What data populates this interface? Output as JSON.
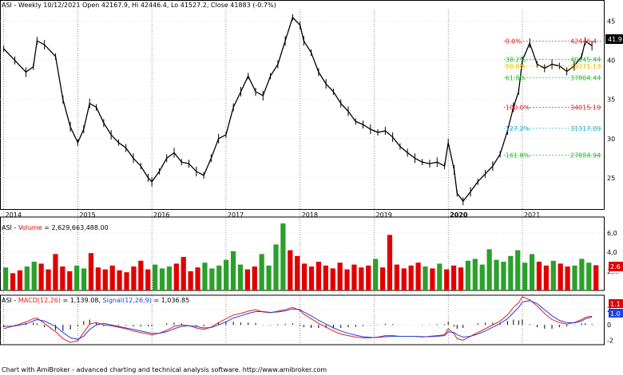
{
  "colors": {
    "background": "#ffffff",
    "price": "#000000",
    "vol_up": "#2ca02c",
    "vol_down": "#e00000",
    "macd": "#e02020",
    "signal": "#2040e0",
    "hist": "#000000",
    "grid": "#c8c8c8",
    "year_divider": "#000000",
    "fib_red": "#e02020",
    "fib_green": "#20c020",
    "fib_cyan": "#20b0c0",
    "fib_yellow": "#e0c000"
  },
  "header": {
    "price_title": "ASI - Weekly 10/12/2021 Open 42167.9, Hi 42446.4, Lo 41527.2, Close 41883 (-0.7%)",
    "volume_title_prefix": "ASI - ",
    "volume_title_name": "Volume",
    "volume_title_value": " = 2,629,663,488.00",
    "macd_title_prefix": "ASI - ",
    "macd_title_macd": "MACD(12,26)",
    "macd_title_macd_val": " = 1,139.08, ",
    "macd_title_signal": "Signal(12,26,9)",
    "macd_title_signal_val": " = 1,036.85"
  },
  "footer": "Chart with AmiBroker - advanced charting and technical analysis software. http://www.amibroker.com",
  "price_badge": "41.9",
  "volume_badge": "2.6",
  "macd_badge_1": "1.1",
  "macd_badge_2": "1.0",
  "fib_labels": [
    {
      "pct": "0.0%",
      "value": "42446.4",
      "color": "fib_red"
    },
    {
      "pct": "38.2%",
      "value": "40145.44",
      "color": "fib_green"
    },
    {
      "pct": "50.0%",
      "value": "39271.13",
      "color": "fib_yellow"
    },
    {
      "pct": "61.8%",
      "value": "37804.44",
      "color": "fib_green"
    },
    {
      "pct": "100.0%",
      "value": "34015.19",
      "color": "fib_red"
    },
    {
      "pct": "127.2%",
      "value": "31317.09",
      "color": "fib_cyan"
    },
    {
      "pct": "161.8%",
      "value": "27884.94",
      "color": "fib_green"
    }
  ],
  "chart_data": [
    {
      "type": "line",
      "title": "ASI - Weekly 10/12/2021 Open 42167.9, Hi 42446.4, Lo 41527.2, Close 41883 (-0.7%)",
      "y_axis_ticks": [
        "25",
        "30",
        "35",
        "40",
        "45"
      ],
      "x_axis_ticks": [
        "2014",
        "2015",
        "2016",
        "2017",
        "2018",
        "2019",
        "2020",
        "2021"
      ],
      "ylim": [
        21000,
        46500
      ],
      "x": [
        2014.0,
        2014.15,
        2014.3,
        2014.4,
        2014.45,
        2014.55,
        2014.7,
        2014.8,
        2014.9,
        2015.0,
        2015.08,
        2015.16,
        2015.25,
        2015.35,
        2015.45,
        2015.55,
        2015.65,
        2015.75,
        2015.85,
        2015.95,
        2016.0,
        2016.1,
        2016.2,
        2016.3,
        2016.4,
        2016.5,
        2016.6,
        2016.7,
        2016.8,
        2016.9,
        2017.0,
        2017.1,
        2017.2,
        2017.3,
        2017.4,
        2017.5,
        2017.6,
        2017.7,
        2017.8,
        2017.9,
        2018.0,
        2018.05,
        2018.15,
        2018.25,
        2018.35,
        2018.45,
        2018.55,
        2018.65,
        2018.75,
        2018.85,
        2018.95,
        2019.05,
        2019.15,
        2019.25,
        2019.35,
        2019.45,
        2019.55,
        2019.65,
        2019.75,
        2019.85,
        2019.95,
        2020.0,
        2020.08,
        2020.12,
        2020.2,
        2020.3,
        2020.4,
        2020.5,
        2020.6,
        2020.7,
        2020.8,
        2020.88,
        2020.95,
        2021.0,
        2021.1,
        2021.2,
        2021.3,
        2021.4,
        2021.5,
        2021.6,
        2021.7,
        2021.8,
        2021.85,
        2021.94
      ],
      "series": [
        {
          "values": [
            41500,
            40000,
            38500,
            39200,
            42500,
            42000,
            40500,
            35000,
            31500,
            29500,
            31200,
            34500,
            34000,
            32000,
            30500,
            29500,
            28800,
            27500,
            26500,
            25000,
            24500,
            25800,
            27500,
            28200,
            27000,
            26800,
            25800,
            25300,
            27500,
            30000,
            30500,
            34000,
            36000,
            38000,
            36000,
            35500,
            38000,
            39500,
            42500,
            45500,
            44500,
            42500,
            41000,
            38500,
            37000,
            36000,
            34500,
            33500,
            32200,
            31800,
            31200,
            30800,
            31000,
            30200,
            29000,
            28200,
            27500,
            27000,
            26800,
            27000,
            26500,
            29500,
            26000,
            23000,
            22000,
            23200,
            24500,
            25500,
            26500,
            28000,
            31000,
            34000,
            36000,
            40000,
            42200,
            39500,
            39000,
            39500,
            39300,
            38600,
            39300,
            40500,
            42446,
            41883
          ]
        }
      ]
    },
    {
      "type": "bar",
      "title": "ASI - Volume = 2,629,663,488.00",
      "y_axis_ticks": [
        "2,...",
        "4,0",
        "6,0"
      ],
      "ylim": [
        0,
        7000
      ],
      "series": [
        {
          "name": "Volume",
          "values": [
            2400,
            1800,
            2100,
            2500,
            3000,
            2800,
            2200,
            3800,
            2500,
            2000,
            2600,
            2300,
            3900,
            2400,
            2200,
            2600,
            2100,
            1900,
            2500,
            3100,
            2200,
            2700,
            2300,
            2500,
            2800,
            3500,
            2000,
            2400,
            2900,
            2300,
            2600,
            3200,
            4100,
            2700,
            2200,
            2500,
            3800,
            2600,
            4800,
            7000,
            4200,
            3600,
            2800,
            2500,
            3000,
            2600,
            2300,
            2900,
            2200,
            2700,
            2400,
            2600,
            3300,
            2400,
            5800,
            2700,
            2300,
            2600,
            2900,
            2500,
            2300,
            2800,
            2200,
            2600,
            2400,
            3100,
            3300,
            2700,
            4300,
            3200,
            3000,
            3600,
            4200,
            2900,
            3800,
            3000,
            2600,
            3100,
            2800,
            2500,
            2600,
            3300,
            2900,
            2630
          ]
        }
      ]
    },
    {
      "type": "line",
      "title": "ASI - MACD(12,26) = 1,139.08, Signal(12,26,9) = 1,036.85",
      "y_axis_ticks": [
        "-2",
        "0",
        "2"
      ],
      "ylim": [
        -2600,
        3900
      ],
      "series": [
        {
          "name": "MACD(12,26)",
          "values": [
            -500,
            -100,
            400,
            800,
            900,
            200,
            -900,
            -1800,
            -2300,
            -2100,
            -1000,
            100,
            300,
            0,
            -100,
            -300,
            -500,
            -800,
            -1000,
            -1200,
            -1300,
            -1100,
            -700,
            -200,
            0,
            -100,
            -400,
            -600,
            -300,
            300,
            800,
            1300,
            1500,
            1800,
            2000,
            1700,
            1600,
            1800,
            2000,
            2300,
            1900,
            1400,
            800,
            200,
            -300,
            -800,
            -1200,
            -1400,
            -1600,
            -1700,
            -1700,
            -1600,
            -1400,
            -1400,
            -1500,
            -1500,
            -1500,
            -1600,
            -1500,
            -1400,
            -1300,
            -500,
            -1200,
            -1800,
            -2000,
            -1500,
            -1000,
            -500,
            0,
            500,
            1300,
            2300,
            2900,
            3700,
            3300,
            2500,
            1500,
            700,
            300,
            100,
            300,
            700,
            1000,
            1139
          ]
        },
        {
          "name": "Signal(12,26,9)",
          "values": [
            -200,
            -150,
            150,
            500,
            700,
            500,
            -200,
            -1000,
            -1700,
            -1900,
            -1500,
            -600,
            0,
            200,
            0,
            -200,
            -400,
            -600,
            -800,
            -1000,
            -1100,
            -1100,
            -900,
            -500,
            -200,
            -100,
            -200,
            -400,
            -350,
            0,
            400,
            900,
            1200,
            1500,
            1750,
            1750,
            1650,
            1700,
            1850,
            2100,
            2000,
            1700,
            1200,
            600,
            100,
            -400,
            -800,
            -1100,
            -1350,
            -1550,
            -1650,
            -1650,
            -1550,
            -1500,
            -1500,
            -1500,
            -1500,
            -1550,
            -1550,
            -1500,
            -1400,
            -900,
            -1000,
            -1300,
            -1600,
            -1500,
            -1200,
            -800,
            -300,
            200,
            800,
            1600,
            2300,
            3000,
            3200,
            2800,
            2000,
            1200,
            600,
            300,
            250,
            500,
            800,
            1037
          ]
        },
        {
          "name": "Histogram",
          "values": [
            -300,
            50,
            250,
            300,
            200,
            -300,
            -700,
            -800,
            -600,
            -200,
            500,
            700,
            300,
            -200,
            -100,
            -100,
            -100,
            -200,
            -200,
            -200,
            -200,
            0,
            200,
            300,
            200,
            0,
            -200,
            -200,
            50,
            300,
            400,
            400,
            300,
            300,
            250,
            -50,
            -50,
            100,
            150,
            200,
            -100,
            -300,
            -400,
            -400,
            -400,
            -400,
            -400,
            -300,
            -250,
            -150,
            -50,
            50,
            150,
            100,
            0,
            0,
            0,
            -50,
            50,
            100,
            100,
            400,
            -200,
            -500,
            -400,
            0,
            200,
            300,
            300,
            300,
            500,
            700,
            600,
            700,
            100,
            -300,
            -500,
            -500,
            -300,
            -200,
            50,
            200,
            200,
            102
          ]
        }
      ]
    }
  ]
}
